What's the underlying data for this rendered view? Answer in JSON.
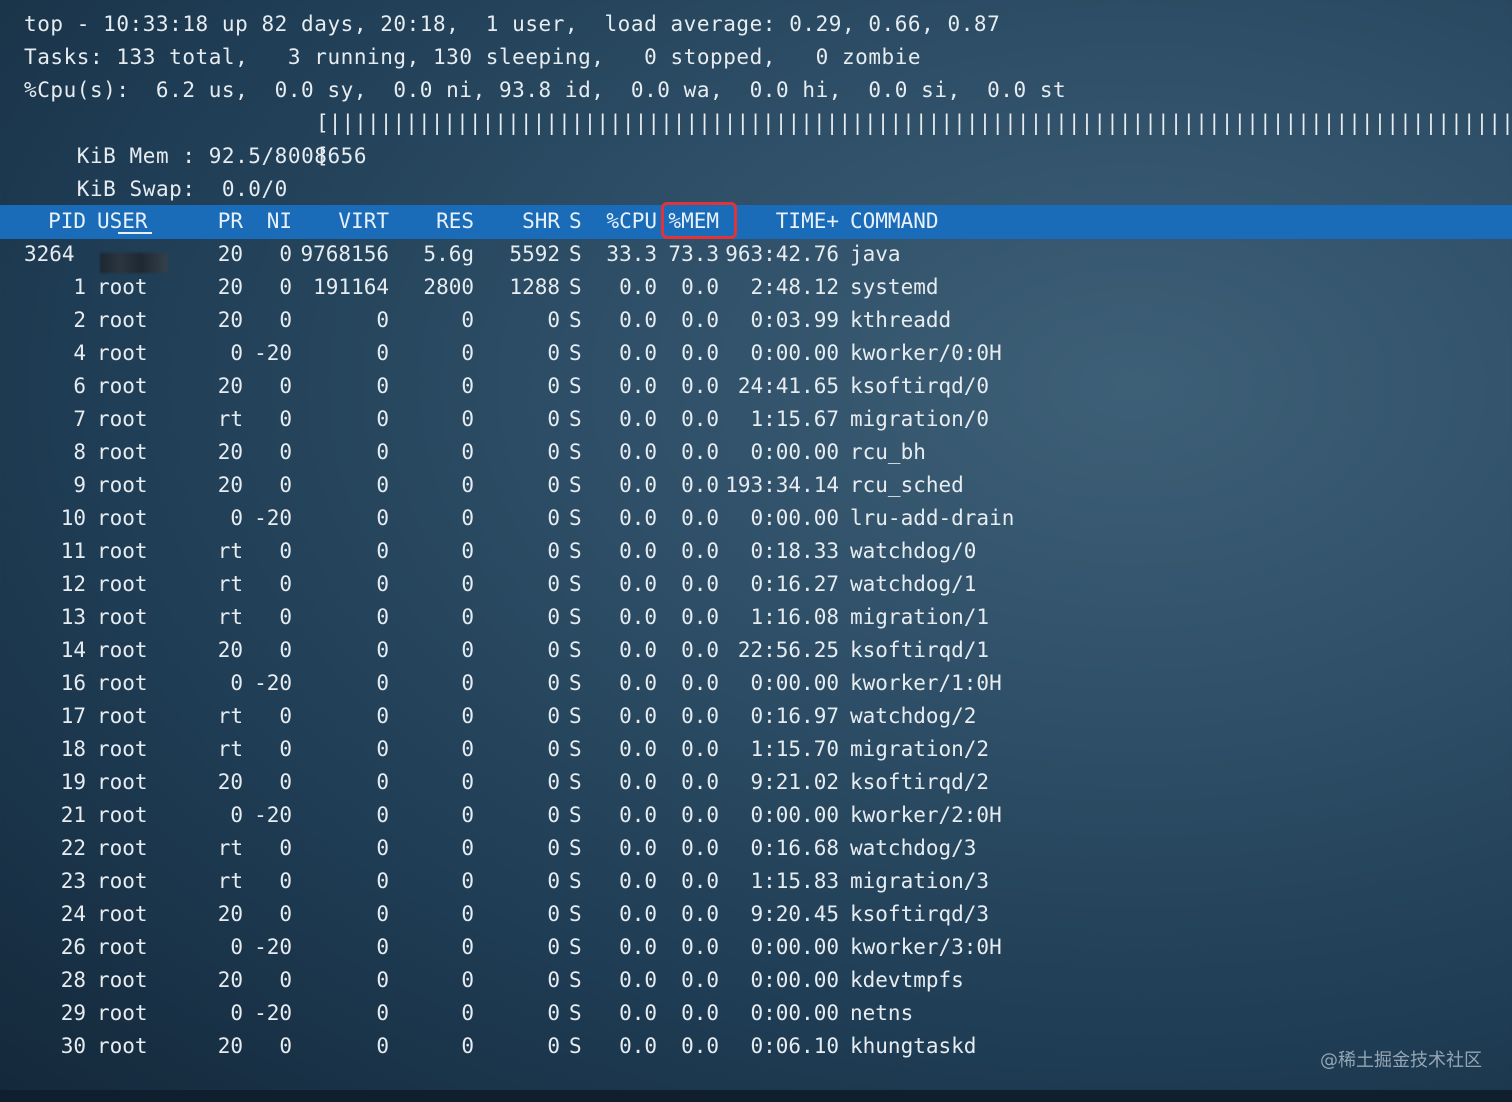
{
  "summary": {
    "line1": "top - 10:33:18 up 82 days, 20:18,  1 user,  load average: 0.29, 0.66, 0.87",
    "line2": "Tasks: 133 total,   3 running, 130 sleeping,   0 stopped,   0 zombie",
    "line3": "%Cpu(s):  6.2 us,  0.0 sy,  0.0 ni, 93.8 id,  0.0 wa,  0.0 hi,  0.0 si,  0.0 st",
    "mem_label": "KiB Mem : 92.5/8008656",
    "mem_bar": "[|||||||||||||||||||||||||||||||||||||||||||||||||||||||||||||||||||||||||||||||||||||||||||||]",
    "swap_label": "KiB Swap:  0.0/0",
    "swap_bar": "["
  },
  "columns": {
    "pid": "PID",
    "user": "USER",
    "pr": "PR",
    "ni": "NI",
    "virt": "VIRT",
    "res": "RES",
    "shr": "SHR",
    "s": "S",
    "cpu": "%CPU",
    "mem": "%MEM",
    "time": "TIME+",
    "command": "COMMAND"
  },
  "highlighted_column": "%MEM",
  "processes": [
    {
      "pid": "3264",
      "user": "",
      "pr": "20",
      "ni": "0",
      "virt": "9768156",
      "res": "5.6g",
      "shr": "5592",
      "s": "S",
      "cpu": "33.3",
      "mem": "73.3",
      "time": "963:42.76",
      "command": "java"
    },
    {
      "pid": "1",
      "user": "root",
      "pr": "20",
      "ni": "0",
      "virt": "191164",
      "res": "2800",
      "shr": "1288",
      "s": "S",
      "cpu": "0.0",
      "mem": "0.0",
      "time": "2:48.12",
      "command": "systemd"
    },
    {
      "pid": "2",
      "user": "root",
      "pr": "20",
      "ni": "0",
      "virt": "0",
      "res": "0",
      "shr": "0",
      "s": "S",
      "cpu": "0.0",
      "mem": "0.0",
      "time": "0:03.99",
      "command": "kthreadd"
    },
    {
      "pid": "4",
      "user": "root",
      "pr": "0",
      "ni": "-20",
      "virt": "0",
      "res": "0",
      "shr": "0",
      "s": "S",
      "cpu": "0.0",
      "mem": "0.0",
      "time": "0:00.00",
      "command": "kworker/0:0H"
    },
    {
      "pid": "6",
      "user": "root",
      "pr": "20",
      "ni": "0",
      "virt": "0",
      "res": "0",
      "shr": "0",
      "s": "S",
      "cpu": "0.0",
      "mem": "0.0",
      "time": "24:41.65",
      "command": "ksoftirqd/0"
    },
    {
      "pid": "7",
      "user": "root",
      "pr": "rt",
      "ni": "0",
      "virt": "0",
      "res": "0",
      "shr": "0",
      "s": "S",
      "cpu": "0.0",
      "mem": "0.0",
      "time": "1:15.67",
      "command": "migration/0"
    },
    {
      "pid": "8",
      "user": "root",
      "pr": "20",
      "ni": "0",
      "virt": "0",
      "res": "0",
      "shr": "0",
      "s": "S",
      "cpu": "0.0",
      "mem": "0.0",
      "time": "0:00.00",
      "command": "rcu_bh"
    },
    {
      "pid": "9",
      "user": "root",
      "pr": "20",
      "ni": "0",
      "virt": "0",
      "res": "0",
      "shr": "0",
      "s": "S",
      "cpu": "0.0",
      "mem": "0.0",
      "time": "193:34.14",
      "command": "rcu_sched"
    },
    {
      "pid": "10",
      "user": "root",
      "pr": "0",
      "ni": "-20",
      "virt": "0",
      "res": "0",
      "shr": "0",
      "s": "S",
      "cpu": "0.0",
      "mem": "0.0",
      "time": "0:00.00",
      "command": "lru-add-drain"
    },
    {
      "pid": "11",
      "user": "root",
      "pr": "rt",
      "ni": "0",
      "virt": "0",
      "res": "0",
      "shr": "0",
      "s": "S",
      "cpu": "0.0",
      "mem": "0.0",
      "time": "0:18.33",
      "command": "watchdog/0"
    },
    {
      "pid": "12",
      "user": "root",
      "pr": "rt",
      "ni": "0",
      "virt": "0",
      "res": "0",
      "shr": "0",
      "s": "S",
      "cpu": "0.0",
      "mem": "0.0",
      "time": "0:16.27",
      "command": "watchdog/1"
    },
    {
      "pid": "13",
      "user": "root",
      "pr": "rt",
      "ni": "0",
      "virt": "0",
      "res": "0",
      "shr": "0",
      "s": "S",
      "cpu": "0.0",
      "mem": "0.0",
      "time": "1:16.08",
      "command": "migration/1"
    },
    {
      "pid": "14",
      "user": "root",
      "pr": "20",
      "ni": "0",
      "virt": "0",
      "res": "0",
      "shr": "0",
      "s": "S",
      "cpu": "0.0",
      "mem": "0.0",
      "time": "22:56.25",
      "command": "ksoftirqd/1"
    },
    {
      "pid": "16",
      "user": "root",
      "pr": "0",
      "ni": "-20",
      "virt": "0",
      "res": "0",
      "shr": "0",
      "s": "S",
      "cpu": "0.0",
      "mem": "0.0",
      "time": "0:00.00",
      "command": "kworker/1:0H"
    },
    {
      "pid": "17",
      "user": "root",
      "pr": "rt",
      "ni": "0",
      "virt": "0",
      "res": "0",
      "shr": "0",
      "s": "S",
      "cpu": "0.0",
      "mem": "0.0",
      "time": "0:16.97",
      "command": "watchdog/2"
    },
    {
      "pid": "18",
      "user": "root",
      "pr": "rt",
      "ni": "0",
      "virt": "0",
      "res": "0",
      "shr": "0",
      "s": "S",
      "cpu": "0.0",
      "mem": "0.0",
      "time": "1:15.70",
      "command": "migration/2"
    },
    {
      "pid": "19",
      "user": "root",
      "pr": "20",
      "ni": "0",
      "virt": "0",
      "res": "0",
      "shr": "0",
      "s": "S",
      "cpu": "0.0",
      "mem": "0.0",
      "time": "9:21.02",
      "command": "ksoftirqd/2"
    },
    {
      "pid": "21",
      "user": "root",
      "pr": "0",
      "ni": "-20",
      "virt": "0",
      "res": "0",
      "shr": "0",
      "s": "S",
      "cpu": "0.0",
      "mem": "0.0",
      "time": "0:00.00",
      "command": "kworker/2:0H"
    },
    {
      "pid": "22",
      "user": "root",
      "pr": "rt",
      "ni": "0",
      "virt": "0",
      "res": "0",
      "shr": "0",
      "s": "S",
      "cpu": "0.0",
      "mem": "0.0",
      "time": "0:16.68",
      "command": "watchdog/3"
    },
    {
      "pid": "23",
      "user": "root",
      "pr": "rt",
      "ni": "0",
      "virt": "0",
      "res": "0",
      "shr": "0",
      "s": "S",
      "cpu": "0.0",
      "mem": "0.0",
      "time": "1:15.83",
      "command": "migration/3"
    },
    {
      "pid": "24",
      "user": "root",
      "pr": "20",
      "ni": "0",
      "virt": "0",
      "res": "0",
      "shr": "0",
      "s": "S",
      "cpu": "0.0",
      "mem": "0.0",
      "time": "9:20.45",
      "command": "ksoftirqd/3"
    },
    {
      "pid": "26",
      "user": "root",
      "pr": "0",
      "ni": "-20",
      "virt": "0",
      "res": "0",
      "shr": "0",
      "s": "S",
      "cpu": "0.0",
      "mem": "0.0",
      "time": "0:00.00",
      "command": "kworker/3:0H"
    },
    {
      "pid": "28",
      "user": "root",
      "pr": "20",
      "ni": "0",
      "virt": "0",
      "res": "0",
      "shr": "0",
      "s": "S",
      "cpu": "0.0",
      "mem": "0.0",
      "time": "0:00.00",
      "command": "kdevtmpfs"
    },
    {
      "pid": "29",
      "user": "root",
      "pr": "0",
      "ni": "-20",
      "virt": "0",
      "res": "0",
      "shr": "0",
      "s": "S",
      "cpu": "0.0",
      "mem": "0.0",
      "time": "0:00.00",
      "command": "netns"
    },
    {
      "pid": "30",
      "user": "root",
      "pr": "20",
      "ni": "0",
      "virt": "0",
      "res": "0",
      "shr": "0",
      "s": "S",
      "cpu": "0.0",
      "mem": "0.0",
      "time": "0:06.10",
      "command": "khungtaskd"
    }
  ],
  "watermark": "@稀土掘金技术社区",
  "colors": {
    "header_bar": "#1b6cb8",
    "highlight_border": "#e0333a",
    "text": "#e6ecf0"
  }
}
